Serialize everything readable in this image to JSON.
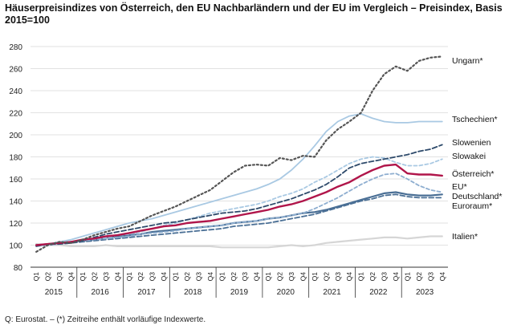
{
  "chart_data": {
    "type": "line",
    "title": "Häuserpreisindizes von Österreich, den EU Nachbarländern und der EU im Vergleich – Preisindex, Basis 2015=100",
    "source": "Q: Eurostat. – (*) Zeitreihe enthält vorläufige Indexwerte.",
    "xlabel": "",
    "ylabel": "",
    "ylim": [
      80,
      280
    ],
    "yticks": [
      80,
      100,
      120,
      140,
      160,
      180,
      200,
      220,
      240,
      260,
      280
    ],
    "grid": true,
    "legend": "labels at right end of lines",
    "quarter_labels": [
      "Q1",
      "Q2",
      "Q3",
      "Q4"
    ],
    "years": [
      "2015",
      "2016",
      "2017",
      "2018",
      "2019",
      "2020",
      "2021",
      "2022",
      "2023"
    ],
    "x": [
      "2015 Q1",
      "2015 Q2",
      "2015 Q3",
      "2015 Q4",
      "2016 Q1",
      "2016 Q2",
      "2016 Q3",
      "2016 Q4",
      "2017 Q1",
      "2017 Q2",
      "2017 Q3",
      "2017 Q4",
      "2018 Q1",
      "2018 Q2",
      "2018 Q3",
      "2018 Q4",
      "2019 Q1",
      "2019 Q2",
      "2019 Q3",
      "2019 Q4",
      "2020 Q1",
      "2020 Q2",
      "2020 Q3",
      "2020 Q4",
      "2021 Q1",
      "2021 Q2",
      "2021 Q3",
      "2021 Q4",
      "2022 Q1",
      "2022 Q2",
      "2022 Q3",
      "2022 Q4",
      "2023 Q1",
      "2023 Q2",
      "2023 Q3",
      "2023 Q4"
    ],
    "series": [
      {
        "name": "Ungarn*",
        "color": "#555555",
        "dash": "2,3",
        "width": 2.2,
        "values": [
          94,
          100,
          103,
          102,
          105,
          109,
          112,
          115,
          117,
          122,
          127,
          131,
          135,
          140,
          145,
          150,
          158,
          166,
          172,
          173,
          172,
          179,
          177,
          181,
          180,
          195,
          205,
          212,
          220,
          240,
          255,
          262,
          258,
          267,
          270,
          271
        ]
      },
      {
        "name": "Tschechien*",
        "color": "#a9c9e3",
        "dash": "",
        "width": 1.8,
        "values": [
          99,
          101,
          103,
          105,
          108,
          111,
          114,
          117,
          120,
          122,
          124,
          127,
          130,
          133,
          136,
          139,
          142,
          145,
          148,
          151,
          155,
          160,
          168,
          178,
          190,
          203,
          212,
          217,
          219,
          215,
          212,
          211,
          211,
          212,
          212,
          212
        ]
      },
      {
        "name": "Slowenien",
        "color": "#2e4a6b",
        "dash": "6,3",
        "width": 1.8,
        "values": [
          99,
          101,
          101,
          102,
          104,
          107,
          110,
          112,
          114,
          116,
          118,
          120,
          121,
          123,
          125,
          127,
          129,
          130,
          131,
          133,
          136,
          139,
          142,
          146,
          150,
          155,
          162,
          170,
          174,
          176,
          178,
          180,
          182,
          185,
          187,
          191
        ]
      },
      {
        "name": "Slowakei",
        "color": "#a9c9e3",
        "dash": "4,3",
        "width": 1.8,
        "values": [
          99,
          100,
          101,
          102,
          104,
          106,
          107,
          109,
          110,
          112,
          115,
          118,
          120,
          123,
          126,
          129,
          131,
          133,
          135,
          137,
          140,
          144,
          147,
          151,
          157,
          162,
          168,
          174,
          178,
          180,
          179,
          175,
          172,
          172,
          174,
          178
        ]
      },
      {
        "name": "Österreich*",
        "color": "#b0154a",
        "dash": "",
        "width": 2.4,
        "values": [
          100,
          101,
          102,
          103,
          105,
          106,
          108,
          109,
          111,
          113,
          115,
          117,
          118,
          120,
          121,
          122,
          124,
          126,
          128,
          130,
          132,
          135,
          137,
          140,
          144,
          148,
          153,
          157,
          163,
          168,
          172,
          173,
          165,
          164,
          164,
          163
        ]
      },
      {
        "name": "EU*",
        "color": "#8eaed0",
        "dash": "4,3",
        "width": 1.8,
        "values": [
          100,
          101,
          102,
          103,
          104,
          105,
          106,
          107,
          108,
          110,
          111,
          112,
          113,
          115,
          116,
          117,
          118,
          120,
          121,
          122,
          124,
          125,
          127,
          129,
          133,
          138,
          143,
          149,
          155,
          160,
          164,
          165,
          160,
          154,
          150,
          148
        ]
      },
      {
        "name": "Deutschland*",
        "color": "#4a6f95",
        "dash": "",
        "width": 2.2,
        "values": [
          100,
          101,
          102,
          103,
          104,
          105,
          107,
          108,
          109,
          110,
          112,
          113,
          114,
          115,
          116,
          117,
          118,
          120,
          121,
          122,
          124,
          125,
          127,
          129,
          130,
          132,
          135,
          138,
          141,
          144,
          147,
          148,
          146,
          145,
          145,
          146
        ]
      },
      {
        "name": "Euroraum*",
        "color": "#4a6f95",
        "dash": "6,3",
        "width": 1.8,
        "values": [
          100,
          100,
          101,
          102,
          103,
          104,
          105,
          106,
          107,
          108,
          109,
          110,
          111,
          112,
          113,
          114,
          115,
          117,
          118,
          119,
          120,
          122,
          124,
          126,
          128,
          131,
          134,
          137,
          140,
          142,
          145,
          146,
          144,
          143,
          143,
          143
        ]
      },
      {
        "name": "Italien*",
        "color": "#d6d6d6",
        "dash": "",
        "width": 2.2,
        "values": [
          101,
          100,
          100,
          99,
          99,
          99,
          100,
          99,
          99,
          99,
          99,
          99,
          99,
          99,
          99,
          99,
          98,
          98,
          98,
          98,
          98,
          99,
          100,
          99,
          100,
          102,
          103,
          104,
          105,
          106,
          107,
          107,
          106,
          107,
          108,
          108
        ]
      }
    ]
  }
}
